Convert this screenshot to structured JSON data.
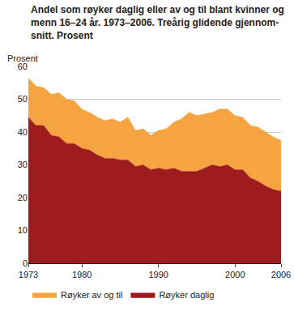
{
  "chart_data": {
    "type": "area",
    "title": [
      "Andel som røyker daglig eller av og til blant kvinner og",
      "menn 16–24 år. 1973–2006. Treårig glidende gjennom-",
      "snitt. Prosent"
    ],
    "y_label": "Prosent",
    "stacked": true,
    "x": [
      1973,
      1974,
      1975,
      1976,
      1977,
      1978,
      1979,
      1980,
      1981,
      1982,
      1983,
      1984,
      1985,
      1986,
      1987,
      1988,
      1989,
      1990,
      1991,
      1992,
      1993,
      1994,
      1995,
      1996,
      1997,
      1998,
      1999,
      2000,
      2001,
      2002,
      2003,
      2004,
      2005,
      2006
    ],
    "series": [
      {
        "name": "Røyker daglig",
        "color": "#9e1b1e",
        "values": [
          44.5,
          42,
          42,
          39,
          38.5,
          36.5,
          36.5,
          35,
          34.5,
          33,
          32,
          32,
          31.5,
          31.5,
          29.5,
          30,
          28.5,
          29,
          28.5,
          29,
          28,
          28,
          28,
          29,
          30,
          29.5,
          30,
          28.5,
          28.5,
          26,
          25,
          23.5,
          22.5,
          22
        ]
      },
      {
        "name": "Røyker av og til",
        "color": "#f5a441",
        "values": [
          12,
          12,
          11.5,
          12.5,
          13.5,
          13.5,
          13,
          12,
          11.5,
          11.5,
          11.5,
          12,
          11.5,
          13,
          11,
          11,
          10.5,
          11.5,
          12.5,
          14,
          16,
          18,
          17,
          16.5,
          16,
          17.5,
          17,
          16.5,
          16,
          16,
          16.5,
          16.5,
          16,
          15.5
        ]
      }
    ],
    "xlim": [
      1973,
      2006
    ],
    "xticks": [
      1973,
      1980,
      1990,
      2000,
      2006
    ],
    "ylim": [
      0,
      60
    ],
    "yticks": [
      0,
      10,
      20,
      30,
      40,
      50,
      60
    ],
    "grid": true,
    "legend": "bottom"
  }
}
